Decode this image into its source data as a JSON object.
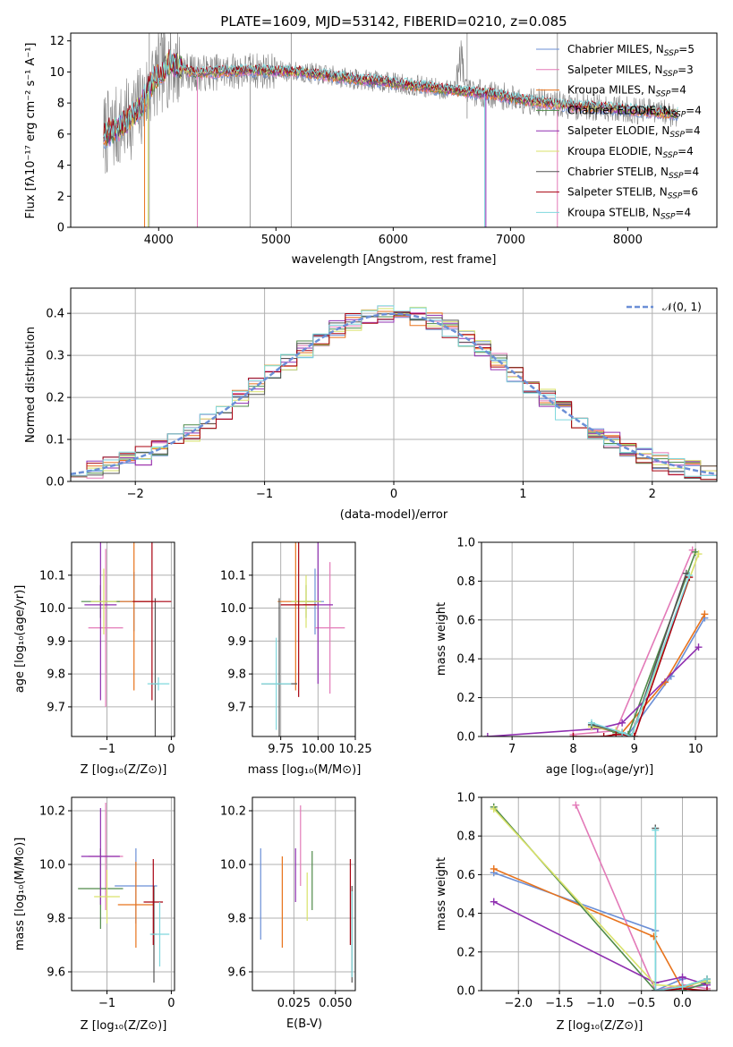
{
  "colors": [
    "#6b8fd6",
    "#e37ab8",
    "#e8731c",
    "#4f8a49",
    "#8f2fb0",
    "#d9e26a",
    "#555555",
    "#a8000f",
    "#7fd8dd"
  ],
  "chart_data": [
    {
      "id": "spectrum",
      "type": "line",
      "title": "PLATE=1609, MJD=53142, FIBERID=0210, z=0.085",
      "xlabel": "wavelength [Angstrom, rest frame]",
      "ylabel": "Flux [fλ10⁻¹⁷ erg cm⁻² s⁻¹ A⁻¹]",
      "xlim": [
        3250,
        8760
      ],
      "ylim": [
        0,
        12.5
      ],
      "xticks": [
        4000,
        5000,
        6000,
        7000,
        8000
      ],
      "yticks": [
        0,
        2,
        4,
        6,
        8,
        10,
        12
      ],
      "grid": false,
      "legend_position": "top-right",
      "legend": [
        {
          "label": "Chabrier MILES, N",
          "sub": "SSP",
          "n": "=5"
        },
        {
          "label": "Salpeter MILES, N",
          "sub": "SSP",
          "n": "=3"
        },
        {
          "label": "Kroupa MILES, N",
          "sub": "SSP",
          "n": "=4"
        },
        {
          "label": "Chabrier ELODIE, N",
          "sub": "SSP",
          "n": "=4"
        },
        {
          "label": "Salpeter ELODIE, N",
          "sub": "SSP",
          "n": "=4"
        },
        {
          "label": "Kroupa ELODIE, N",
          "sub": "SSP",
          "n": "=4"
        },
        {
          "label": "Chabrier STELIB, N",
          "sub": "SSP",
          "n": "=4"
        },
        {
          "label": "Salpeter STELIB, N",
          "sub": "SSP",
          "n": "=6"
        },
        {
          "label": "Kroupa STELIB, N",
          "sub": "SSP",
          "n": "=4"
        }
      ],
      "continuum_points": [
        [
          3500,
          5.8
        ],
        [
          3700,
          6.6
        ],
        [
          3850,
          7.8
        ],
        [
          3950,
          9.4
        ],
        [
          4100,
          10.6
        ],
        [
          4300,
          9.9
        ],
        [
          4500,
          10.0
        ],
        [
          4800,
          10.1
        ],
        [
          5200,
          10.0
        ],
        [
          5600,
          9.6
        ],
        [
          6000,
          9.3
        ],
        [
          6400,
          8.9
        ],
        [
          6800,
          8.6
        ],
        [
          7200,
          8.1
        ],
        [
          7500,
          7.8
        ],
        [
          7800,
          7.7
        ],
        [
          8100,
          7.5
        ],
        [
          8400,
          7.3
        ]
      ]
    },
    {
      "id": "residuals",
      "type": "histogram",
      "xlabel": "(data-model)/error",
      "ylabel": "Normed distribution",
      "xlim": [
        -2.5,
        2.5
      ],
      "ylim": [
        0,
        0.46
      ],
      "xticks": [
        -2,
        -1,
        0,
        1,
        2
      ],
      "yticks": [
        0.0,
        0.1,
        0.2,
        0.3,
        0.4
      ],
      "grid": true,
      "legend_position": "top-right",
      "reference_curve": {
        "label": "𝒩(0, 1)",
        "mean": 0,
        "sigma": 1
      }
    },
    {
      "id": "age-vs-Z",
      "type": "errorbar",
      "xlabel": "Z [log₁₀(Z/Z⊙)]",
      "ylabel": "age  [log₁₀(age/yr)]",
      "xlim": [
        -1.55,
        0.05
      ],
      "ylim": [
        9.61,
        10.2
      ],
      "xticks": [
        -1,
        0
      ],
      "yticks": [
        9.7,
        9.8,
        9.9,
        10.0,
        10.1
      ],
      "grid": true,
      "points": [
        {
          "x": -0.58,
          "xerr": 0.25,
          "y": 10.02,
          "yerr": 0.09
        },
        {
          "x": -1.02,
          "xerr": 0.27,
          "y": 9.94,
          "yerr": 0.24
        },
        {
          "x": -0.58,
          "xerr": 0.3,
          "y": 10.02,
          "yerr": 0.27
        },
        {
          "x": -1.1,
          "xerr": 0.3,
          "y": 10.02,
          "yerr": 0.05
        },
        {
          "x": -1.1,
          "xerr": 0.25,
          "y": 10.01,
          "yerr": 0.29
        },
        {
          "x": -1.05,
          "xerr": 0.2,
          "y": 10.02,
          "yerr": 0.1
        },
        {
          "x": -0.25,
          "xerr": 0.05,
          "y": 9.77,
          "yerr": 0.26
        },
        {
          "x": -0.3,
          "xerr": 0.3,
          "y": 10.02,
          "yerr": 0.3
        },
        {
          "x": -0.2,
          "xerr": 0.17,
          "y": 9.77,
          "yerr": 0.02
        }
      ]
    },
    {
      "id": "age-vs-mass",
      "type": "errorbar",
      "xlabel": "mass [log₁₀(M/M⊙)]",
      "ylabel": "",
      "xlim": [
        9.56,
        10.25
      ],
      "ylim": [
        9.61,
        10.2
      ],
      "xticks": [
        9.75,
        10.0,
        10.25
      ],
      "yticks": [
        9.7,
        9.8,
        9.9,
        10.0,
        10.1
      ],
      "grid": true,
      "points": [
        {
          "x": 9.98,
          "xerr": 0.06,
          "y": 10.02,
          "yerr": 0.1
        },
        {
          "x": 10.08,
          "xerr": 0.1,
          "y": 9.94,
          "yerr": 0.2
        },
        {
          "x": 9.85,
          "xerr": 0.12,
          "y": 10.02,
          "yerr": 0.27
        },
        {
          "x": 9.92,
          "xerr": 0.1,
          "y": 10.02,
          "yerr": 0.05
        },
        {
          "x": 10.0,
          "xerr": 0.1,
          "y": 10.01,
          "yerr": 0.24
        },
        {
          "x": 9.92,
          "xerr": 0.1,
          "y": 10.02,
          "yerr": 0.08
        },
        {
          "x": 9.74,
          "xerr": 0.12,
          "y": 9.77,
          "yerr": 0.26
        },
        {
          "x": 9.87,
          "xerr": 0.12,
          "y": 10.01,
          "yerr": 0.28
        },
        {
          "x": 9.72,
          "xerr": 0.1,
          "y": 9.77,
          "yerr": 0.14
        }
      ]
    },
    {
      "id": "massweight-vs-age",
      "type": "line",
      "xlabel": "age  [log₁₀(age/yr)]",
      "ylabel": "mass weight",
      "xlim": [
        6.5,
        10.35
      ],
      "ylim": [
        0,
        1.0
      ],
      "xticks": [
        7,
        8,
        9,
        10
      ],
      "yticks": [
        0.0,
        0.2,
        0.4,
        0.6,
        0.8,
        1.0
      ],
      "grid": true,
      "series": [
        {
          "x": [
            8.3,
            8.9,
            9.6,
            10.15
          ],
          "y": [
            0.06,
            0.01,
            0.31,
            0.61
          ]
        },
        {
          "x": [
            8.0,
            8.7,
            9.95
          ],
          "y": [
            0.01,
            0.03,
            0.96
          ]
        },
        {
          "x": [
            8.3,
            8.8,
            9.5,
            10.15
          ],
          "y": [
            0.05,
            0.02,
            0.28,
            0.63
          ]
        },
        {
          "x": [
            8.3,
            8.7,
            8.9,
            10.0
          ],
          "y": [
            0.06,
            0.02,
            0.01,
            0.95
          ]
        },
        {
          "x": [
            6.6,
            8.4,
            8.8,
            10.05
          ],
          "y": [
            0.0,
            0.04,
            0.07,
            0.46
          ]
        },
        {
          "x": [
            8.3,
            8.7,
            8.95,
            10.05
          ],
          "y": [
            0.05,
            0.03,
            0.0,
            0.94
          ]
        },
        {
          "x": [
            8.3,
            8.8,
            8.95,
            9.85
          ],
          "y": [
            0.06,
            0.02,
            0.0,
            0.84
          ]
        },
        {
          "x": [
            8.0,
            8.5,
            8.7,
            8.8,
            9.0,
            9.9
          ],
          "y": [
            0.0,
            0.0,
            0.01,
            0.01,
            0.0,
            0.82
          ]
        },
        {
          "x": [
            8.3,
            8.8,
            8.95,
            9.9
          ],
          "y": [
            0.07,
            0.02,
            0.0,
            0.83
          ]
        }
      ]
    },
    {
      "id": "mass-vs-Z",
      "type": "errorbar",
      "xlabel": "Z [log₁₀(Z/Z⊙)]",
      "ylabel": "mass [log₁₀(M/M⊙)]",
      "xlim": [
        -1.55,
        0.05
      ],
      "ylim": [
        9.53,
        10.25
      ],
      "xticks": [
        -1,
        0
      ],
      "yticks": [
        9.6,
        9.8,
        10.0,
        10.2
      ],
      "grid": true,
      "points": [
        {
          "x": -0.55,
          "xerr": 0.33,
          "y": 9.92,
          "yerr": 0.14
        },
        {
          "x": -1.02,
          "xerr": 0.27,
          "y": 10.03,
          "yerr": 0.2
        },
        {
          "x": -0.55,
          "xerr": 0.28,
          "y": 9.85,
          "yerr": 0.16
        },
        {
          "x": -1.1,
          "xerr": 0.35,
          "y": 9.91,
          "yerr": 0.15
        },
        {
          "x": -1.1,
          "xerr": 0.3,
          "y": 10.03,
          "yerr": 0.18
        },
        {
          "x": -1.0,
          "xerr": 0.2,
          "y": 9.88,
          "yerr": 0.1
        },
        {
          "x": -0.27,
          "xerr": 0.04,
          "y": 9.74,
          "yerr": 0.18
        },
        {
          "x": -0.28,
          "xerr": 0.15,
          "y": 9.86,
          "yerr": 0.16
        },
        {
          "x": -0.18,
          "xerr": 0.15,
          "y": 9.74,
          "yerr": 0.12
        }
      ]
    },
    {
      "id": "mass-vs-EBV",
      "type": "errorbar",
      "xlabel": "E(B-V)",
      "ylabel": "",
      "xlim": [
        0.0,
        0.062
      ],
      "ylim": [
        9.53,
        10.25
      ],
      "xticks": [
        0.025,
        0.05
      ],
      "yticks": [
        9.6,
        9.8,
        10.0,
        10.2
      ],
      "grid": true,
      "points": [
        {
          "x": 0.005,
          "xerr": 0.0,
          "y": 9.89,
          "yerr": 0.17
        },
        {
          "x": 0.029,
          "xerr": 0.0,
          "y": 10.07,
          "yerr": 0.15
        },
        {
          "x": 0.018,
          "xerr": 0.0,
          "y": 9.86,
          "yerr": 0.17
        },
        {
          "x": 0.036,
          "xerr": 0.0,
          "y": 9.94,
          "yerr": 0.11
        },
        {
          "x": 0.026,
          "xerr": 0.0,
          "y": 9.96,
          "yerr": 0.1
        },
        {
          "x": 0.033,
          "xerr": 0.0,
          "y": 9.88,
          "yerr": 0.09
        },
        {
          "x": 0.06,
          "xerr": 0.0,
          "y": 9.74,
          "yerr": 0.18
        },
        {
          "x": 0.059,
          "xerr": 0.0,
          "y": 9.86,
          "yerr": 0.16
        },
        {
          "x": 0.06,
          "xerr": 0.0,
          "y": 9.74,
          "yerr": 0.16
        }
      ]
    },
    {
      "id": "massweight-vs-Z",
      "type": "line",
      "xlabel": "Z [log₁₀(Z/Z⊙)]",
      "ylabel": "mass weight",
      "xlim": [
        -2.45,
        0.42
      ],
      "ylim": [
        0,
        1.0
      ],
      "xticks": [
        -2.0,
        -1.5,
        -1.0,
        -0.5,
        0.0
      ],
      "yticks": [
        0.0,
        0.2,
        0.4,
        0.6,
        0.8,
        1.0
      ],
      "grid": true,
      "series": [
        {
          "x": [
            -2.3,
            -0.33,
            -0.33,
            0.0,
            0.0,
            0.3
          ],
          "y": [
            0.61,
            0.31,
            0.0,
            0.06,
            0.01,
            0.03
          ]
        },
        {
          "x": [
            -1.3,
            -0.33,
            0.0,
            0.3
          ],
          "y": [
            0.96,
            0.0,
            0.03,
            0.01
          ]
        },
        {
          "x": [
            -2.3,
            -0.35,
            0.0,
            0.3
          ],
          "y": [
            0.63,
            0.28,
            0.01,
            0.06
          ]
        },
        {
          "x": [
            -2.3,
            -0.33,
            0.0,
            0.3
          ],
          "y": [
            0.95,
            0.0,
            0.0,
            0.04
          ]
        },
        {
          "x": [
            -2.3,
            -0.33,
            0.0,
            0.3
          ],
          "y": [
            0.46,
            0.04,
            0.07,
            0.03
          ]
        },
        {
          "x": [
            -2.3,
            -0.33,
            0.0,
            0.3
          ],
          "y": [
            0.94,
            0.03,
            0.02,
            0.05
          ]
        },
        {
          "x": [
            -0.33,
            -0.33,
            0.0,
            0.3
          ],
          "y": [
            0.84,
            0.0,
            0.02,
            0.06
          ]
        },
        {
          "x": [
            -0.33,
            0.0,
            0.0,
            0.3
          ],
          "y": [
            0.0,
            0.01,
            0.01,
            0.0
          ]
        },
        {
          "x": [
            -0.33,
            -0.33,
            0.0,
            0.3
          ],
          "y": [
            0.83,
            0.0,
            0.02,
            0.06
          ]
        }
      ]
    }
  ]
}
